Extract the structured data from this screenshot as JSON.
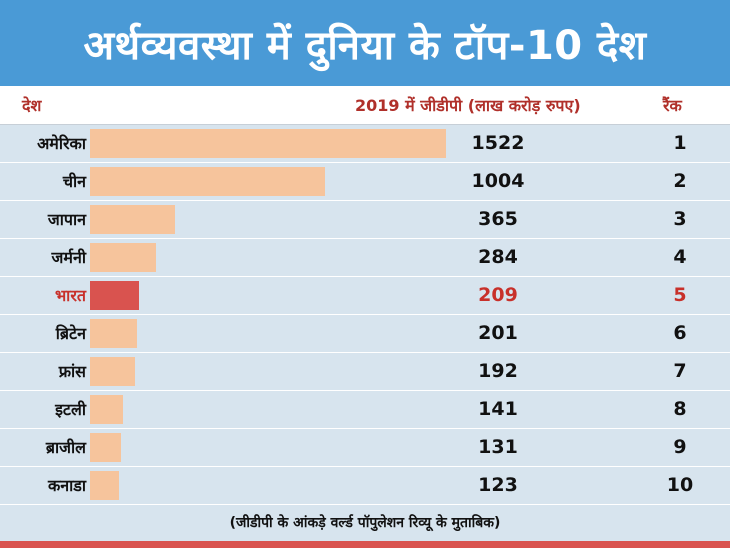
{
  "title": "अर्थव्यवस्था में दुनिया के टॉप-10 देश",
  "colors": {
    "header_bg": "#4a9ad6",
    "bar": "#f6c49c",
    "highlight_bar": "#d9534f",
    "highlight_text": "#c8302a",
    "row_bg": "#d7e4ee",
    "header_text": "#b0302a"
  },
  "headers": {
    "country": "देश",
    "gdp": "2019 में जीडीपी (लाख करोड़ रुपए)",
    "rank": "रैंक"
  },
  "chart_data": {
    "type": "bar",
    "orientation": "horizontal",
    "title": "अर्थव्यवस्था में दुनिया के टॉप-10 देश",
    "ylabel": "2019 में जीडीपी (लाख करोड़ रुपए)",
    "categories": [
      "अमेरिका",
      "चीन",
      "जापान",
      "जर्मनी",
      "भारत",
      "ब्रिटेन",
      "फ्रांस",
      "इटली",
      "ब्राजील",
      "कनाडा"
    ],
    "values": [
      1522,
      1004,
      365,
      284,
      209,
      201,
      192,
      141,
      131,
      123
    ],
    "ranks": [
      "1",
      "2",
      "3",
      "4",
      "5",
      "6",
      "7",
      "8",
      "9",
      "10"
    ],
    "highlight": "भारत",
    "xlim": [
      0,
      1522
    ]
  },
  "footer": "(जीडीपी के आंकड़े वर्ल्ड पॉपुलेशन रिव्यू के मुताबिक)"
}
